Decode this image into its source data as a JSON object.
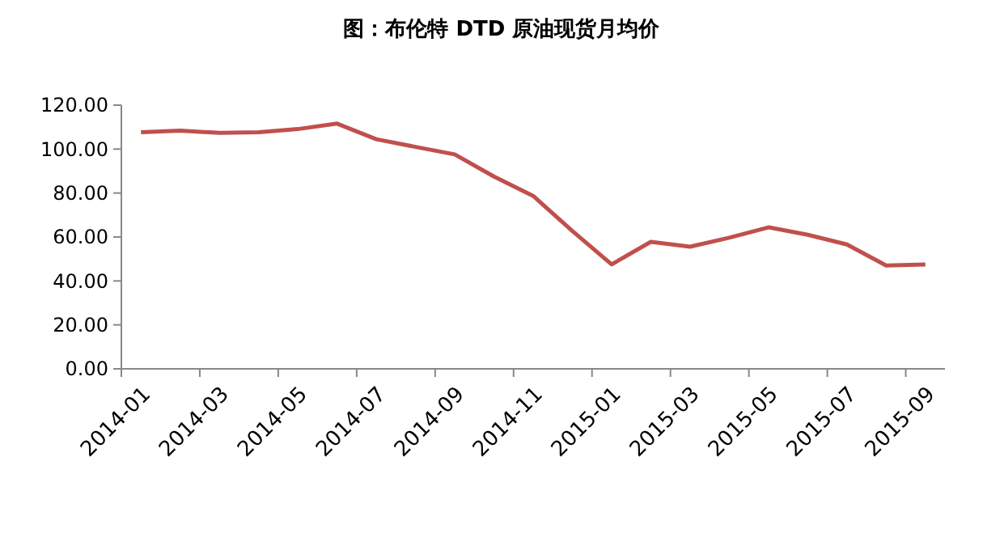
{
  "chart_data": {
    "type": "line",
    "title": "图：布伦特 DTD 原油现货月均价",
    "categories": [
      "2014-01",
      null,
      "2014-03",
      null,
      "2014-05",
      null,
      "2014-07",
      null,
      "2014-09",
      null,
      "2014-11",
      null,
      "2015-01",
      null,
      "2015-03",
      null,
      "2015-05",
      null,
      "2015-07",
      null,
      "2015-09"
    ],
    "series": [
      {
        "color": "#c0504d",
        "values": [
          107.7,
          108.4,
          107.4,
          107.7,
          109.1,
          111.6,
          104.5,
          101,
          97.6,
          87.5,
          78.7,
          62.7,
          47.5,
          57.8,
          55.6,
          59.7,
          64.4,
          61,
          56.6,
          47,
          47.5
        ]
      }
    ],
    "ylim": [
      0,
      120
    ],
    "yticks": [
      {
        "value": 0,
        "label": "0.00"
      },
      {
        "value": 20,
        "label": "20.00"
      },
      {
        "value": 40,
        "label": "40.00"
      },
      {
        "value": 60,
        "label": "60.00"
      },
      {
        "value": 80,
        "label": "80.00"
      },
      {
        "value": 100,
        "label": "100.00"
      },
      {
        "value": 120,
        "label": "120.00"
      }
    ],
    "grid": false,
    "marker": "none",
    "line_style": "solid"
  }
}
